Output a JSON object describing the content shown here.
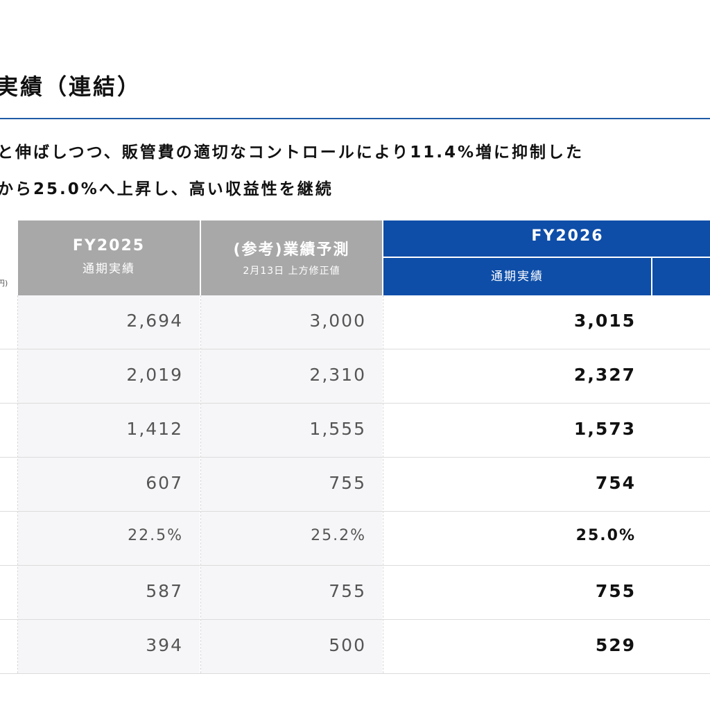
{
  "title": "実績（連結）",
  "summary": {
    "line1": "と伸ばしつつ、販管費の適切なコントロールにより11.4%増に抑制した",
    "line2": "から25.0%へ上昇し、高い収益性を継続"
  },
  "unit_label": "円)",
  "table": {
    "headers": {
      "fy2025_main": "FY2025",
      "fy2025_sub": "通期実績",
      "forecast_main": "(参考)業績予測",
      "forecast_sub": "2月13日 上方修正値",
      "fy2026_main": "FY2026",
      "fy2026_sub": "通期実績"
    },
    "rows": [
      {
        "fy2025": "2,694",
        "forecast": "3,000",
        "fy2026": "3,015"
      },
      {
        "fy2025": "2,019",
        "forecast": "2,310",
        "fy2026": "2,327"
      },
      {
        "fy2025": "1,412",
        "forecast": "1,555",
        "fy2026": "1,573"
      },
      {
        "fy2025": "607",
        "forecast": "755",
        "fy2026": "754"
      },
      {
        "fy2025": "22.5%",
        "forecast": "25.2%",
        "fy2026": "25.0%"
      },
      {
        "fy2025": "587",
        "forecast": "755",
        "fy2026": "755"
      },
      {
        "fy2025": "394",
        "forecast": "500",
        "fy2026": "529"
      }
    ]
  },
  "colors": {
    "accent_blue": "#0e4ea8",
    "header_gray": "#a8a8a8",
    "rule_blue": "#1f5aa6"
  }
}
